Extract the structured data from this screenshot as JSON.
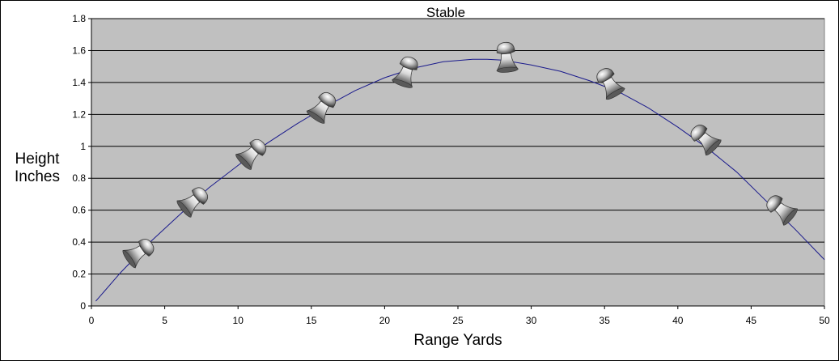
{
  "chart_data": {
    "type": "line",
    "title": "Stable",
    "xlabel": "Range Yards",
    "ylabel": [
      "Height",
      "Inches"
    ],
    "xlim": [
      0,
      50
    ],
    "ylim": [
      0,
      1.8
    ],
    "x_ticks": [
      "0",
      "5",
      "10",
      "15",
      "20",
      "25",
      "30",
      "35",
      "40",
      "45",
      "50"
    ],
    "y_ticks": [
      "0",
      "0.2",
      "0.4",
      "0.6",
      "0.8",
      "1",
      "1.2",
      "1.4",
      "1.6",
      "1.8"
    ],
    "grid": "horizontal",
    "colors": {
      "plot_background": "#c0c0c0",
      "line": "#1a1a8c",
      "grid": "#000000"
    },
    "series": [
      {
        "x": [
          0.3,
          2,
          4,
          6,
          8,
          10,
          12,
          14,
          16,
          18,
          20,
          22,
          24,
          26,
          27,
          28,
          30,
          32,
          34,
          36,
          38,
          40,
          42,
          44,
          46,
          48,
          50
        ],
        "values": [
          0.03,
          0.21,
          0.4,
          0.57,
          0.74,
          0.88,
          1.02,
          1.14,
          1.25,
          1.35,
          1.43,
          1.49,
          1.53,
          1.545,
          1.545,
          1.54,
          1.51,
          1.47,
          1.41,
          1.34,
          1.24,
          1.12,
          0.99,
          0.84,
          0.66,
          0.48,
          0.29
        ]
      }
    ],
    "markers": {
      "icon": "pellet-icon",
      "points": [
        {
          "x": 3.3,
          "y": 0.34,
          "angle": 55
        },
        {
          "x": 7,
          "y": 0.66,
          "angle": 50
        },
        {
          "x": 11,
          "y": 0.96,
          "angle": 45
        },
        {
          "x": 15.8,
          "y": 1.25,
          "angle": 35
        },
        {
          "x": 21.5,
          "y": 1.47,
          "angle": 20
        },
        {
          "x": 28.3,
          "y": 1.56,
          "angle": -5
        },
        {
          "x": 35.3,
          "y": 1.4,
          "angle": -30
        },
        {
          "x": 41.8,
          "y": 1.05,
          "angle": -45
        },
        {
          "x": 47,
          "y": 0.61,
          "angle": -50
        }
      ]
    }
  }
}
